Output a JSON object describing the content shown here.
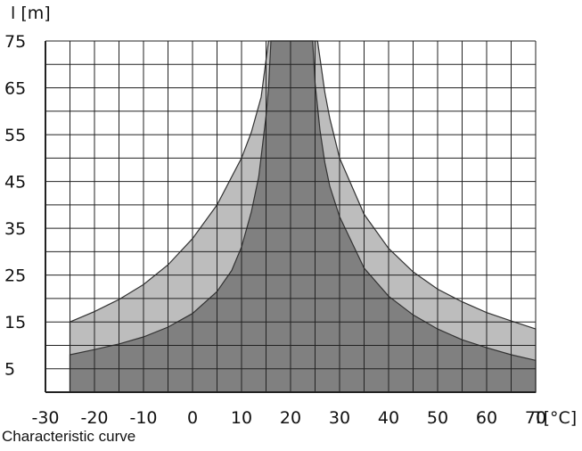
{
  "chart_data": {
    "type": "area",
    "title": "",
    "xlabel": "T[°C]",
    "ylabel": "l [m]",
    "xlim": [
      -30,
      70
    ],
    "ylim": [
      0,
      75
    ],
    "x_ticks": [
      "-30",
      "-20",
      "-10",
      "0",
      "10",
      "20",
      "30",
      "40",
      "50",
      "60",
      "70"
    ],
    "y_ticks": [
      "5",
      "15",
      "25",
      "35",
      "45",
      "55",
      "65",
      "75"
    ],
    "grid": true,
    "series": [
      {
        "color": "#bdbdbd",
        "points": [
          [
            -25,
            15
          ],
          [
            -20,
            17.2
          ],
          [
            -15,
            19.8
          ],
          [
            -10,
            23
          ],
          [
            -5,
            27.2
          ],
          [
            0,
            32.8
          ],
          [
            5,
            40
          ],
          [
            10,
            50
          ],
          [
            12,
            55.5
          ],
          [
            14,
            63
          ],
          [
            15.5,
            75
          ],
          [
            25.5,
            75
          ],
          [
            27,
            64
          ],
          [
            28,
            58.5
          ],
          [
            30,
            50
          ],
          [
            35,
            38
          ],
          [
            40,
            30.7
          ],
          [
            45,
            25.7
          ],
          [
            50,
            22
          ],
          [
            55,
            19.3
          ],
          [
            60,
            17
          ],
          [
            65,
            15.2
          ],
          [
            70,
            13.5
          ]
        ]
      },
      {
        "color": "#808080",
        "points": [
          [
            -25,
            8
          ],
          [
            -20,
            9.1
          ],
          [
            -15,
            10.3
          ],
          [
            -10,
            11.8
          ],
          [
            -5,
            13.9
          ],
          [
            0,
            16.8
          ],
          [
            5,
            21.5
          ],
          [
            8,
            26
          ],
          [
            10,
            31
          ],
          [
            12,
            38.5
          ],
          [
            13.5,
            46
          ],
          [
            15,
            59
          ],
          [
            15.5,
            65
          ],
          [
            16,
            75
          ],
          [
            24.5,
            75
          ],
          [
            25,
            66
          ],
          [
            26,
            56
          ],
          [
            27,
            49
          ],
          [
            28,
            44
          ],
          [
            30,
            37.5
          ],
          [
            35,
            26.5
          ],
          [
            40,
            20.5
          ],
          [
            45,
            16.5
          ],
          [
            50,
            13.5
          ],
          [
            55,
            11.2
          ],
          [
            60,
            9.5
          ],
          [
            65,
            8
          ],
          [
            70,
            6.8
          ]
        ]
      }
    ]
  },
  "caption": "Characteristic curve"
}
